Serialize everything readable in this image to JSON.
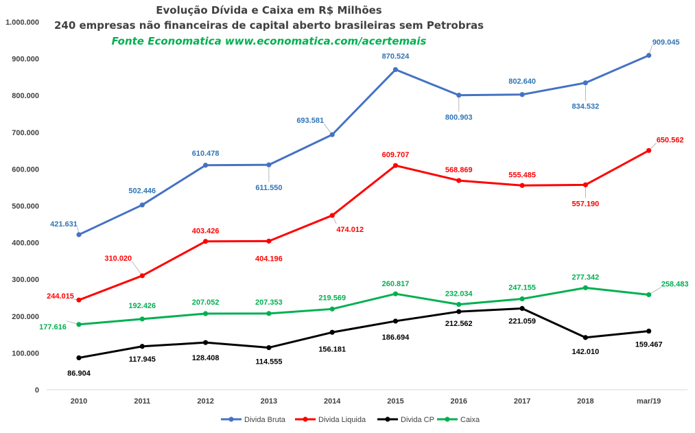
{
  "chart_data": {
    "type": "line",
    "title": "Evolução Dívida e Caixa em R$ Milhões",
    "subtitle": "240 empresas não financeiras de capital aberto brasileiras sem Petrobras",
    "source": "Fonte Economatica  www.economatica.com/acertemais",
    "source_color": "#00b050",
    "categories": [
      "2010",
      "2011",
      "2012",
      "2013",
      "2014",
      "2015",
      "2016",
      "2017",
      "2018",
      "mar/19"
    ],
    "ylim": [
      0,
      1000000
    ],
    "yticks": [
      {
        "value": 0,
        "label": "0"
      },
      {
        "value": 100000,
        "label": "100.000"
      },
      {
        "value": 200000,
        "label": "200.000"
      },
      {
        "value": 300000,
        "label": "300.000"
      },
      {
        "value": 400000,
        "label": "400.000"
      },
      {
        "value": 500000,
        "label": "500.000"
      },
      {
        "value": 600000,
        "label": "600.000"
      },
      {
        "value": 700000,
        "label": "700.000"
      },
      {
        "value": 800000,
        "label": "800.000"
      },
      {
        "value": 900000,
        "label": "900.000"
      },
      {
        "value": 1000000,
        "label": "1.000.000"
      }
    ],
    "grid": false,
    "legend_position": "bottom",
    "series": [
      {
        "name": "Divida Bruta",
        "color": "#4472c4",
        "label_color": "#2e75b6",
        "values": [
          421631,
          502446,
          610478,
          611550,
          693581,
          870524,
          800903,
          802640,
          834532,
          909045
        ],
        "labels": [
          "421.631",
          "502.446",
          "610.478",
          "611.550",
          "693.581",
          "870.524",
          "800.903",
          "802.640",
          "834.532",
          "909.045"
        ]
      },
      {
        "name": "Divida Liquida",
        "color": "#ff0000",
        "label_color": "#ff0000",
        "values": [
          244015,
          310020,
          403426,
          404196,
          474012,
          609707,
          568869,
          555485,
          557190,
          650562
        ],
        "labels": [
          "244.015",
          "310.020",
          "403.426",
          "404.196",
          "474.012",
          "609.707",
          "568.869",
          "555.485",
          "557.190",
          "650.562"
        ]
      },
      {
        "name": "Divida CP",
        "color": "#000000",
        "label_color": "#000000",
        "values": [
          86904,
          117945,
          128408,
          114555,
          156181,
          186694,
          212562,
          221059,
          142010,
          159467
        ],
        "labels": [
          "86.904",
          "117.945",
          "128.408",
          "114.555",
          "156.181",
          "186.694",
          "212.562",
          "221.059",
          "142.010",
          "159.467"
        ]
      },
      {
        "name": "Caixa",
        "color": "#00b050",
        "label_color": "#00b050",
        "values": [
          177616,
          192426,
          207052,
          207353,
          219569,
          260817,
          232034,
          247155,
          277342,
          258483
        ],
        "labels": [
          "177.616",
          "192.426",
          "207.052",
          "207.353",
          "219.569",
          "260.817",
          "232.034",
          "247.155",
          "277.342",
          "258.483"
        ]
      }
    ]
  }
}
